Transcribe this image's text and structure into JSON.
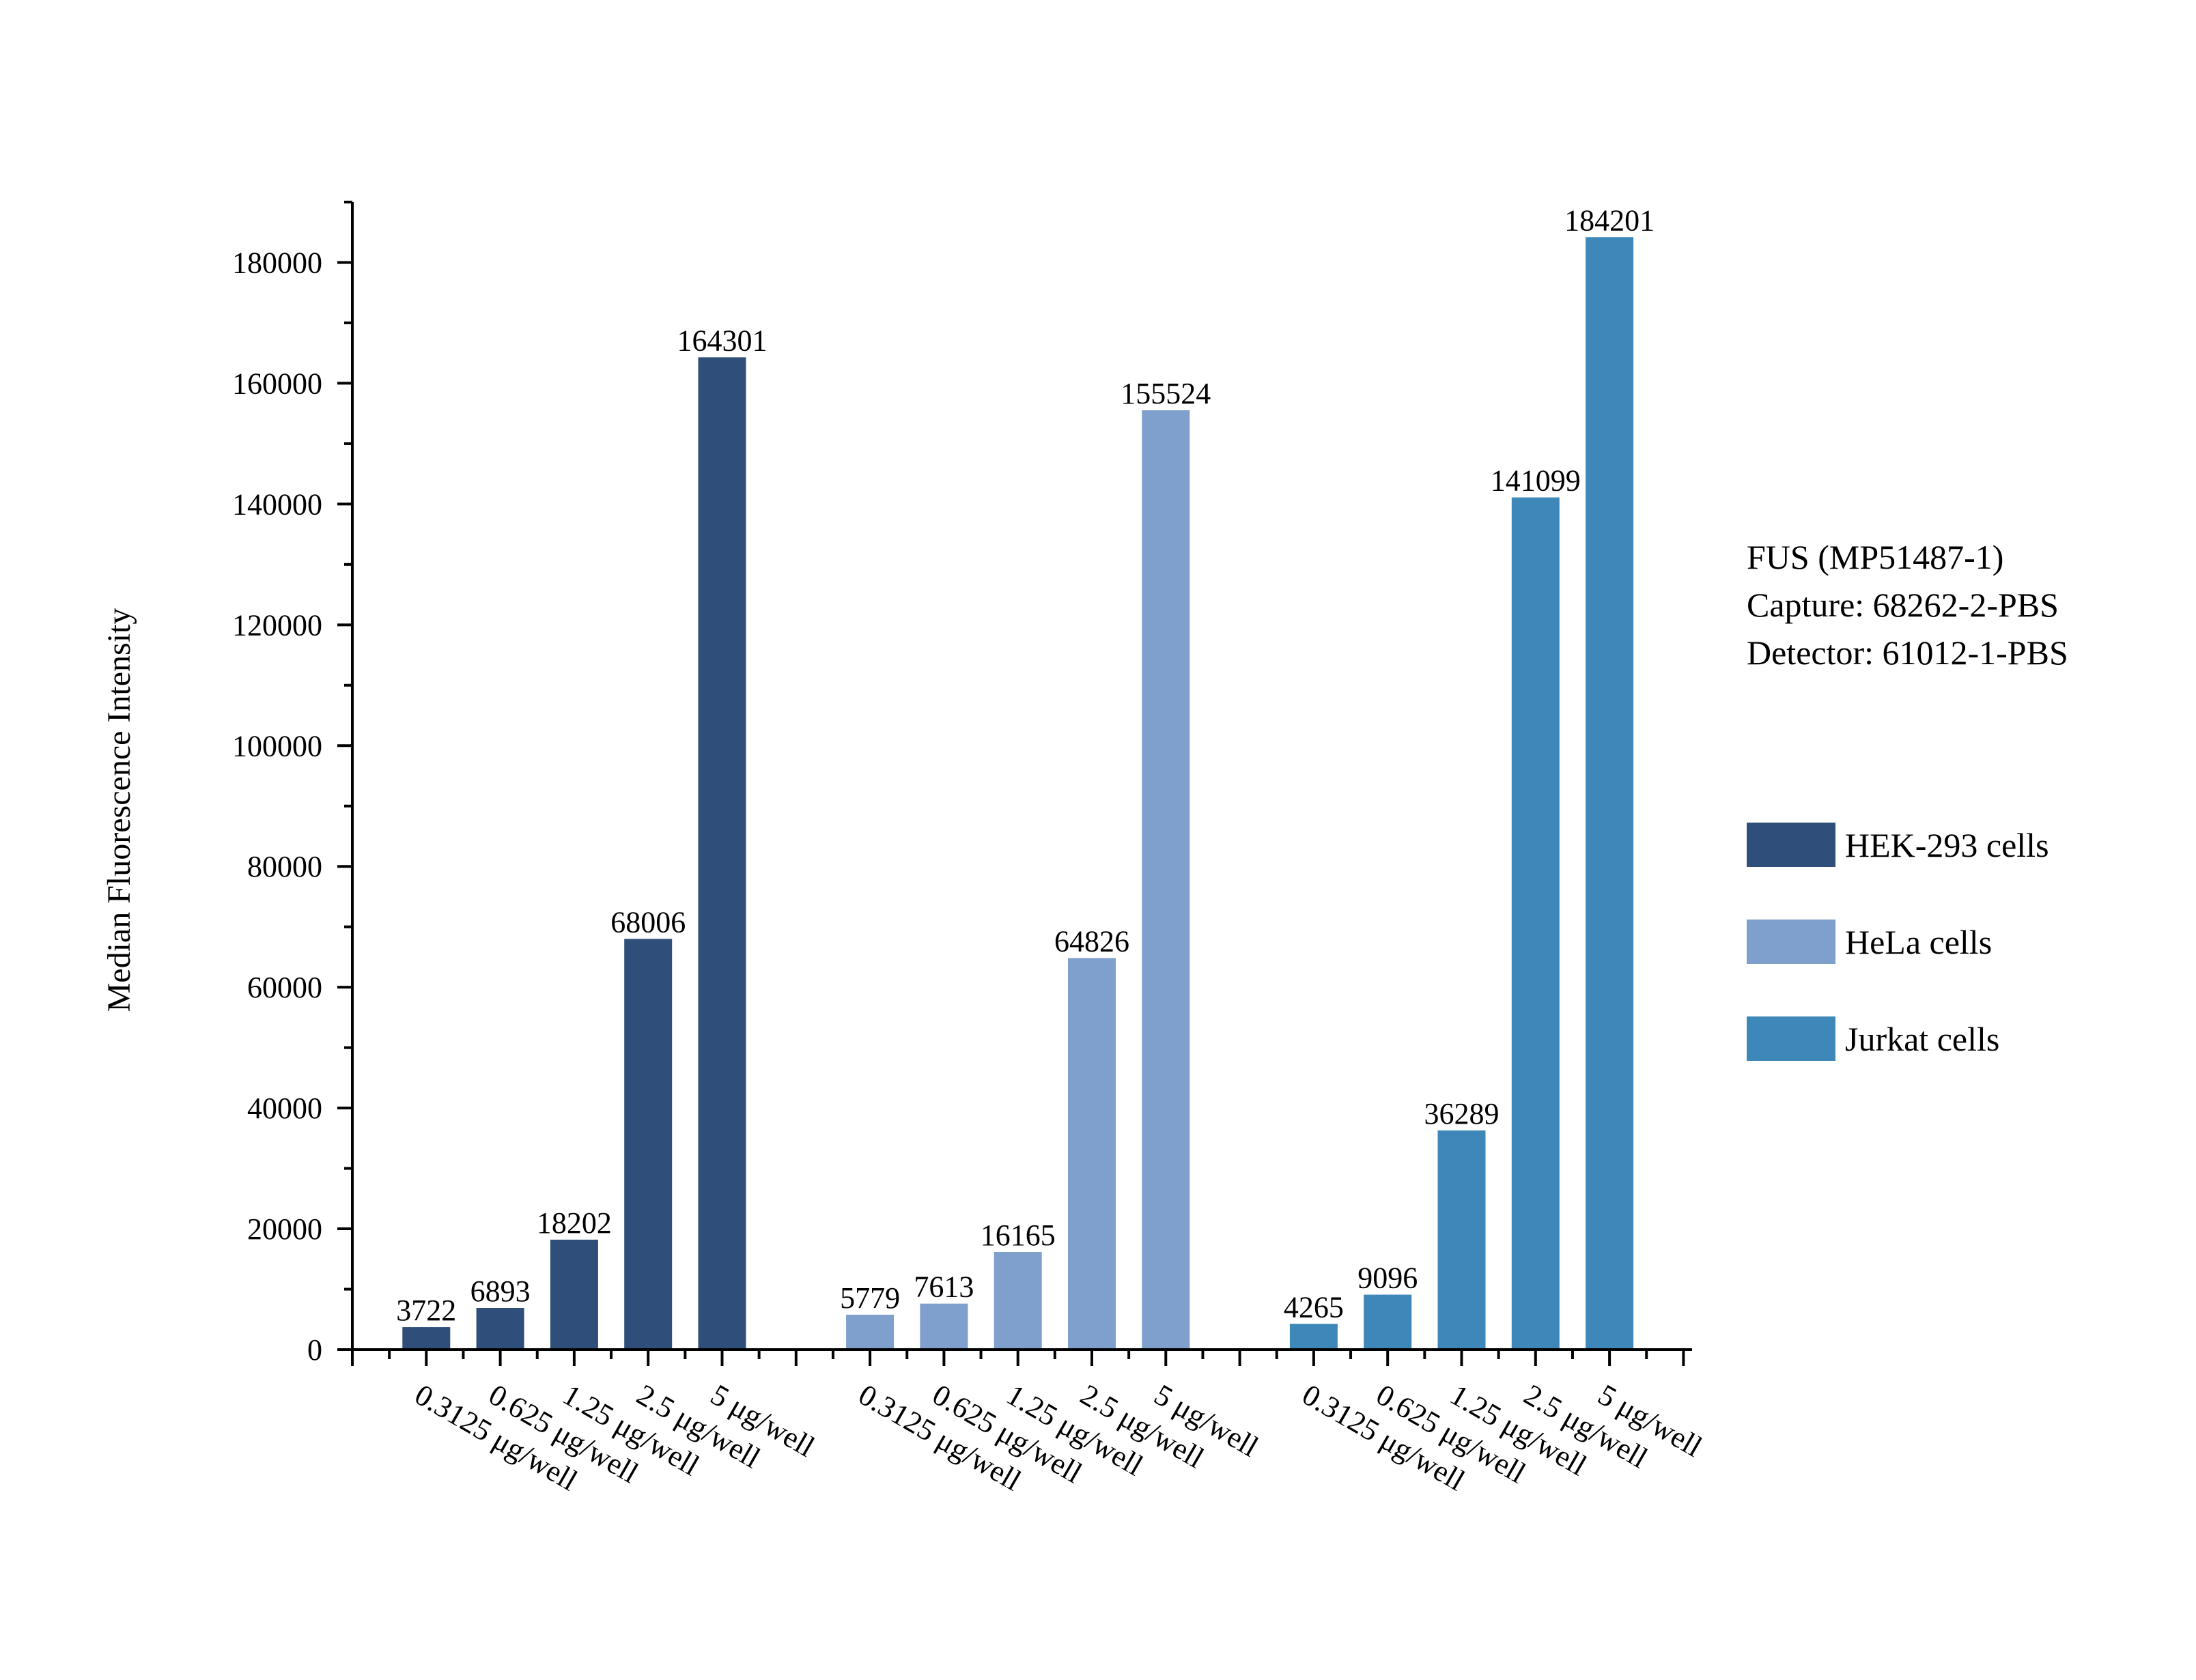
{
  "chart_data": {
    "type": "bar",
    "ylabel": "Median Fluorescence Intensity",
    "xlabel": "",
    "ylim": [
      0,
      190000
    ],
    "yticks": [
      0,
      20000,
      40000,
      60000,
      80000,
      100000,
      120000,
      140000,
      160000,
      180000
    ],
    "grid": false,
    "legend_position": "right",
    "categories": [
      "0.3125 μg/well",
      "0.625 μg/well",
      "1.25 μg/well",
      "2.5 μg/well",
      "5 μg/well"
    ],
    "series": [
      {
        "name": "HEK-293 cells",
        "color": "#2f4f7a",
        "values": [
          3722,
          6893,
          18202,
          68006,
          164301
        ]
      },
      {
        "name": "HeLa cells",
        "color": "#7f9fcc",
        "values": [
          5779,
          7613,
          16165,
          64826,
          155524
        ]
      },
      {
        "name": "Jurkat cells",
        "color": "#3d88b8",
        "values": [
          4265,
          9096,
          36289,
          141099,
          184201
        ]
      }
    ],
    "annotations": [
      "FUS (MP51487-1)",
      "Capture: 68262-2-PBS",
      "Detector: 61012-1-PBS"
    ]
  }
}
